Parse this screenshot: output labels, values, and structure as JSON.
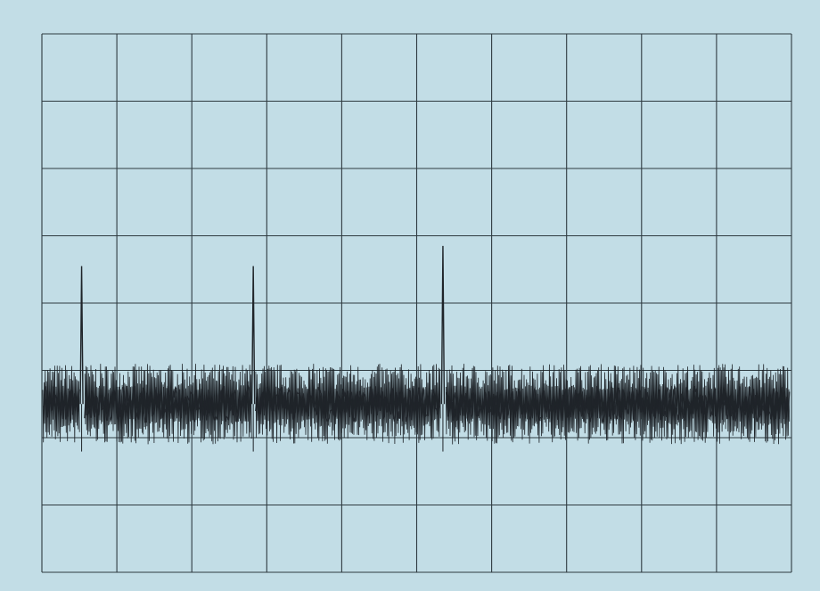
{
  "chart_data": {
    "type": "line",
    "title": "",
    "xlabel": "",
    "ylabel": "",
    "grid": true,
    "grid_divisions": {
      "x": 10,
      "y": 8
    },
    "xlim": [
      0,
      10
    ],
    "ylim": [
      -4,
      4
    ],
    "colors": {
      "background": "#c2dde6",
      "grid": "#2e3a40",
      "trace": "#1f2429",
      "frame": "#9fb9c2"
    },
    "series": [
      {
        "noise_band": {
          "center": -1.5,
          "upper": -0.9,
          "lower": -2.1
        },
        "spikes": [
          {
            "x": 0.53,
            "y": 0.55
          },
          {
            "x": 2.82,
            "y": 0.55
          },
          {
            "x": 5.35,
            "y": 0.85
          }
        ]
      }
    ]
  }
}
